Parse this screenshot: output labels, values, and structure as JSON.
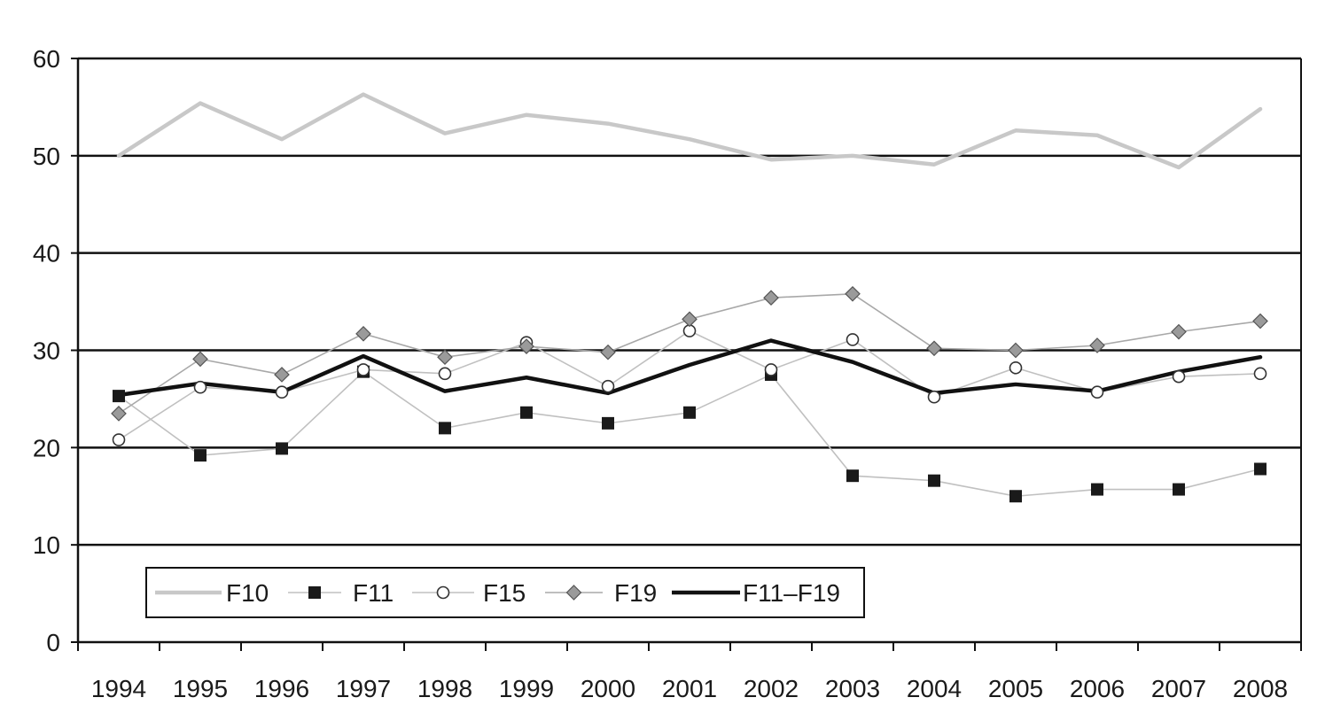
{
  "chart_data": {
    "type": "line",
    "title": "",
    "xlabel": "",
    "ylabel": "",
    "ylim": [
      0,
      60
    ],
    "yticks": [
      0,
      10,
      20,
      30,
      40,
      50,
      60
    ],
    "grid": "horizontal",
    "legend_position": "bottom-left",
    "categories": [
      "1994",
      "1995",
      "1996",
      "1997",
      "1998",
      "1999",
      "2000",
      "2001",
      "2002",
      "2003",
      "2004",
      "2005",
      "2006",
      "2007",
      "2008"
    ],
    "series": [
      {
        "name": "F10",
        "style": "thick-light-gray-line",
        "color": "#c8c8c8",
        "values": [
          50.0,
          55.4,
          51.7,
          56.3,
          52.3,
          54.2,
          53.3,
          51.7,
          49.6,
          50.0,
          49.1,
          52.6,
          52.1,
          48.8,
          54.8
        ]
      },
      {
        "name": "F11",
        "style": "thin-line-square-marker",
        "color": "#1a1a1a",
        "values": [
          25.3,
          19.2,
          19.9,
          27.8,
          22.0,
          23.6,
          22.5,
          23.6,
          27.5,
          17.1,
          16.6,
          15.0,
          15.7,
          15.7,
          17.8
        ]
      },
      {
        "name": "F15",
        "style": "thin-line-open-circle-marker",
        "color": "#ffffff",
        "values": [
          20.8,
          26.2,
          25.7,
          28.0,
          27.6,
          30.8,
          26.3,
          32.0,
          28.0,
          31.1,
          25.2,
          28.2,
          25.7,
          27.3,
          27.6
        ]
      },
      {
        "name": "F19",
        "style": "thin-line-diamond-marker",
        "color": "#a0a0a0",
        "values": [
          23.5,
          29.1,
          27.5,
          31.7,
          29.3,
          30.4,
          29.8,
          33.2,
          35.4,
          35.8,
          30.2,
          30.0,
          30.5,
          31.9,
          33.0
        ]
      },
      {
        "name": "F11–F19",
        "style": "thick-black-line",
        "color": "#111111",
        "values": [
          25.4,
          26.6,
          25.7,
          29.4,
          25.8,
          27.2,
          25.6,
          28.5,
          31.0,
          28.8,
          25.6,
          26.5,
          25.8,
          27.8,
          29.3
        ]
      }
    ]
  }
}
